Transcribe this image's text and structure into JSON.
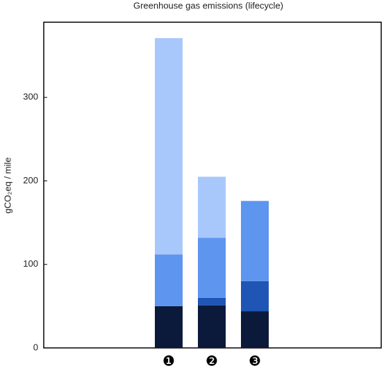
{
  "chart_data": {
    "type": "stacked-bar",
    "title": "Greenhouse gas emissions (lifecycle)",
    "y_label": "gCO₂eq / mile",
    "categories": [
      "❶",
      "❷",
      "❸"
    ],
    "series": [
      {
        "color": "#0b1a3b",
        "values": [
          50,
          51,
          44
        ]
      },
      {
        "color": "#1f55b5",
        "values": [
          null,
          9,
          36
        ]
      },
      {
        "color": "#5d95ef",
        "values": [
          62,
          72,
          96
        ]
      },
      {
        "color": "#a8c8fb",
        "values": [
          259,
          73,
          null
        ]
      }
    ],
    "ylim": [
      0,
      390
    ],
    "yticks": [
      0,
      100,
      200,
      300
    ],
    "grid": false
  }
}
